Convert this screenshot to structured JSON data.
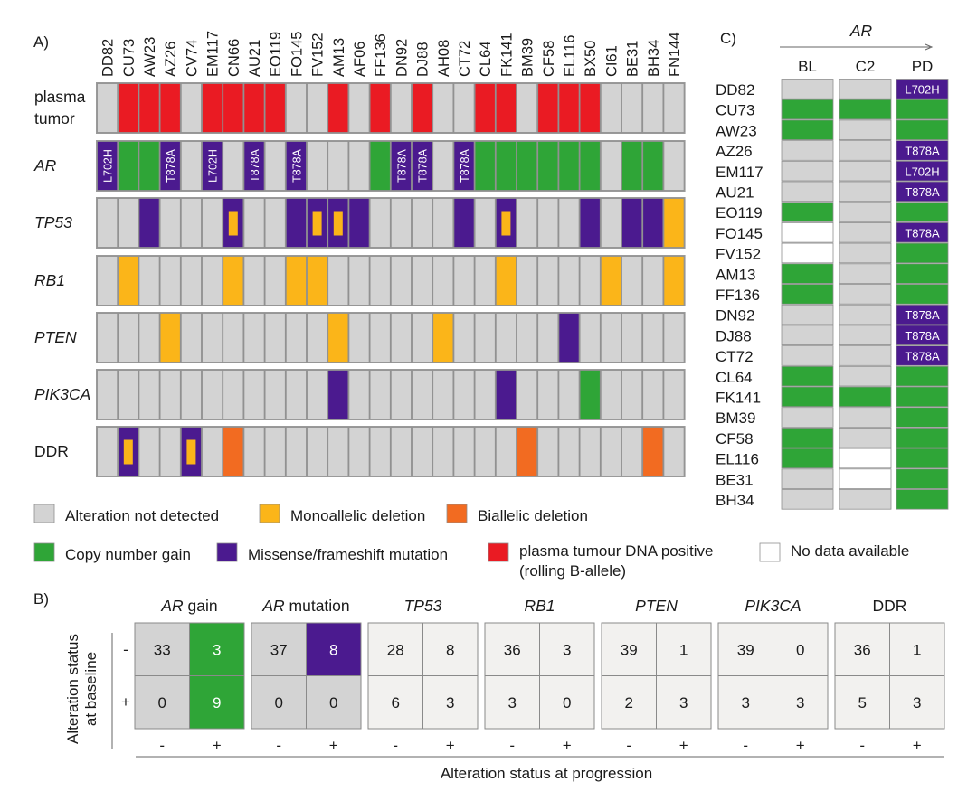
{
  "colors": {
    "none": "#d3d3d3",
    "mono": "#fbb519",
    "bi": "#f26b21",
    "gain": "#2fa537",
    "mut": "#4b1a8f",
    "ctdna": "#ea1b23",
    "nodata": "#ffffff"
  },
  "panelA": {
    "label": "A)",
    "samples": [
      "DD82",
      "CU73",
      "AW23",
      "AZ26",
      "CV74",
      "EM117",
      "CN66",
      "AU21",
      "EO119",
      "FO145",
      "FV152",
      "AM13",
      "AF06",
      "FF136",
      "DN92",
      "DJ88",
      "AH08",
      "CT72",
      "CL64",
      "FK141",
      "BM39",
      "CF58",
      "EL116",
      "BX50",
      "CI61",
      "BE31",
      "BH34",
      "FN144"
    ],
    "rows": [
      {
        "label": "plasma\ntumor",
        "italic": false,
        "cells": [
          "none",
          "ctdna",
          "ctdna",
          "ctdna",
          "none",
          "ctdna",
          "ctdna",
          "ctdna",
          "ctdna",
          "none",
          "none",
          "ctdna",
          "none",
          "ctdna",
          "none",
          "ctdna",
          "none",
          "none",
          "ctdna",
          "ctdna",
          "none",
          "ctdna",
          "ctdna",
          "ctdna",
          "none",
          "none",
          "none",
          "none"
        ]
      },
      {
        "label": "AR",
        "italic": true,
        "cells": [
          "mut",
          "gain",
          "gain",
          "mut",
          "none",
          "mut",
          "none",
          "mut",
          "none",
          "mut",
          "none",
          "none",
          "none",
          "gain",
          "mut",
          "mut",
          "none",
          "mut",
          "gain",
          "gain",
          "gain",
          "gain",
          "gain",
          "gain",
          "none",
          "gain",
          "gain",
          "none"
        ],
        "texts": [
          "L702H",
          "",
          "",
          "T878A",
          "",
          "L702H",
          "",
          "T878A",
          "",
          "T878A",
          "",
          "",
          "",
          "",
          "T878A",
          "T878A",
          "",
          "T878A",
          "",
          "",
          "",
          "",
          "",
          "",
          "",
          "",
          "",
          ""
        ]
      },
      {
        "label": "TP53",
        "italic": true,
        "cells": [
          "none",
          "none",
          "mut",
          "none",
          "none",
          "none",
          "mut",
          "none",
          "none",
          "mut",
          "mut",
          "mut",
          "mut",
          "none",
          "none",
          "none",
          "none",
          "mut",
          "none",
          "mut",
          "none",
          "none",
          "none",
          "mut",
          "none",
          "mut",
          "mut",
          "mono"
        ],
        "inner": [
          0,
          0,
          0,
          0,
          0,
          0,
          1,
          0,
          0,
          0,
          1,
          1,
          0,
          0,
          0,
          0,
          0,
          0,
          0,
          1,
          0,
          0,
          0,
          0,
          0,
          0,
          0,
          0
        ]
      },
      {
        "label": "RB1",
        "italic": true,
        "cells": [
          "none",
          "mono",
          "none",
          "none",
          "none",
          "none",
          "mono",
          "none",
          "none",
          "mono",
          "mono",
          "none",
          "none",
          "none",
          "none",
          "none",
          "none",
          "none",
          "none",
          "mono",
          "none",
          "none",
          "none",
          "none",
          "mono",
          "none",
          "none",
          "mono"
        ]
      },
      {
        "label": "PTEN",
        "italic": true,
        "cells": [
          "none",
          "none",
          "none",
          "mono",
          "none",
          "none",
          "none",
          "none",
          "none",
          "none",
          "none",
          "mono",
          "none",
          "none",
          "none",
          "none",
          "mono",
          "none",
          "none",
          "none",
          "none",
          "none",
          "mut",
          "none",
          "none",
          "none",
          "none",
          "none"
        ]
      },
      {
        "label": "PIK3CA",
        "italic": true,
        "cells": [
          "none",
          "none",
          "none",
          "none",
          "none",
          "none",
          "none",
          "none",
          "none",
          "none",
          "none",
          "mut",
          "none",
          "none",
          "none",
          "none",
          "none",
          "none",
          "none",
          "mut",
          "none",
          "none",
          "none",
          "gain",
          "none",
          "none",
          "none",
          "none"
        ]
      },
      {
        "label": "DDR",
        "italic": false,
        "cells": [
          "none",
          "mut",
          "none",
          "none",
          "mut",
          "none",
          "bi",
          "none",
          "none",
          "none",
          "none",
          "none",
          "none",
          "none",
          "none",
          "none",
          "none",
          "none",
          "none",
          "none",
          "bi",
          "none",
          "none",
          "none",
          "none",
          "none",
          "bi",
          "none"
        ],
        "inner": [
          0,
          1,
          0,
          0,
          1,
          0,
          0,
          0,
          0,
          0,
          0,
          0,
          0,
          0,
          0,
          0,
          0,
          0,
          0,
          0,
          0,
          0,
          0,
          0,
          0,
          0,
          0,
          0
        ]
      }
    ]
  },
  "legend": [
    {
      "key": "none",
      "label": "Alteration not detected"
    },
    {
      "key": "mono",
      "label": "Monoallelic deletion"
    },
    {
      "key": "bi",
      "label": "Biallelic deletion"
    },
    {
      "key": "gain",
      "label": "Copy number gain"
    },
    {
      "key": "mut",
      "label": "Missense/frameshift mutation"
    },
    {
      "key": "ctdna",
      "label": "plasma tumour DNA positive\n(rolling B-allele)"
    },
    {
      "key": "nodata",
      "label": "No data available"
    }
  ],
  "panelB": {
    "label": "B)",
    "ylabel": "Alteration status\nat baseline",
    "xlabel": "Alteration status at progression",
    "row_labels": [
      "-",
      "+"
    ],
    "col_labels": [
      "-",
      "+"
    ],
    "tables": [
      {
        "title": "AR gain",
        "italic_part": "AR",
        "rest": " gain",
        "values": [
          [
            33,
            3
          ],
          [
            0,
            9
          ]
        ],
        "fills": [
          [
            "#d3d3d3",
            "#2fa537"
          ],
          [
            "#d3d3d3",
            "#2fa537"
          ]
        ],
        "fgs": [
          [
            "#1a1a1a",
            "#ffffff"
          ],
          [
            "#1a1a1a",
            "#ffffff"
          ]
        ]
      },
      {
        "title": "AR mutation",
        "italic_part": "AR",
        "rest": " mutation",
        "values": [
          [
            37,
            8
          ],
          [
            0,
            0
          ]
        ],
        "fills": [
          [
            "#d3d3d3",
            "#4b1a8f"
          ],
          [
            "#d3d3d3",
            "#d3d3d3"
          ]
        ],
        "fgs": [
          [
            "#1a1a1a",
            "#ffffff"
          ],
          [
            "#1a1a1a",
            "#1a1a1a"
          ]
        ]
      },
      {
        "title": "TP53",
        "italic_part": "TP53",
        "rest": "",
        "values": [
          [
            28,
            8
          ],
          [
            6,
            3
          ]
        ],
        "fills": [
          [
            "#f2f1ef",
            "#f2f1ef"
          ],
          [
            "#f2f1ef",
            "#f2f1ef"
          ]
        ],
        "fgs": [
          [
            "#1a1a1a",
            "#1a1a1a"
          ],
          [
            "#1a1a1a",
            "#1a1a1a"
          ]
        ]
      },
      {
        "title": "RB1",
        "italic_part": "RB1",
        "rest": "",
        "values": [
          [
            36,
            3
          ],
          [
            3,
            0
          ]
        ],
        "fills": [
          [
            "#f2f1ef",
            "#f2f1ef"
          ],
          [
            "#f2f1ef",
            "#f2f1ef"
          ]
        ],
        "fgs": [
          [
            "#1a1a1a",
            "#1a1a1a"
          ],
          [
            "#1a1a1a",
            "#1a1a1a"
          ]
        ]
      },
      {
        "title": "PTEN",
        "italic_part": "PTEN",
        "rest": "",
        "values": [
          [
            39,
            1
          ],
          [
            2,
            3
          ]
        ],
        "fills": [
          [
            "#f2f1ef",
            "#f2f1ef"
          ],
          [
            "#f2f1ef",
            "#f2f1ef"
          ]
        ],
        "fgs": [
          [
            "#1a1a1a",
            "#1a1a1a"
          ],
          [
            "#1a1a1a",
            "#1a1a1a"
          ]
        ]
      },
      {
        "title": "PIK3CA",
        "italic_part": "PIK3CA",
        "rest": "",
        "values": [
          [
            39,
            0
          ],
          [
            3,
            3
          ]
        ],
        "fills": [
          [
            "#f2f1ef",
            "#f2f1ef"
          ],
          [
            "#f2f1ef",
            "#f2f1ef"
          ]
        ],
        "fgs": [
          [
            "#1a1a1a",
            "#1a1a1a"
          ],
          [
            "#1a1a1a",
            "#1a1a1a"
          ]
        ]
      },
      {
        "title": "DDR",
        "italic_part": "",
        "rest": "DDR",
        "values": [
          [
            36,
            1
          ],
          [
            5,
            3
          ]
        ],
        "fills": [
          [
            "#f2f1ef",
            "#f2f1ef"
          ],
          [
            "#f2f1ef",
            "#f2f1ef"
          ]
        ],
        "fgs": [
          [
            "#1a1a1a",
            "#1a1a1a"
          ],
          [
            "#1a1a1a",
            "#1a1a1a"
          ]
        ]
      }
    ]
  },
  "panelC": {
    "label": "C)",
    "title": "AR",
    "columns": [
      "BL",
      "C2",
      "PD"
    ],
    "samples": [
      "DD82",
      "CU73",
      "AW23",
      "AZ26",
      "EM117",
      "AU21",
      "EO119",
      "FO145",
      "FV152",
      "AM13",
      "FF136",
      "DN92",
      "DJ88",
      "CT72",
      "CL64",
      "FK141",
      "BM39",
      "CF58",
      "EL116",
      "BE31",
      "BH34"
    ],
    "cells": {
      "BL": [
        "none",
        "gain",
        "gain",
        "none",
        "none",
        "none",
        "gain",
        "nodata",
        "nodata",
        "gain",
        "gain",
        "none",
        "none",
        "none",
        "gain",
        "gain",
        "none",
        "gain",
        "gain",
        "none",
        "none"
      ],
      "C2": [
        "none",
        "gain",
        "none",
        "none",
        "none",
        "none",
        "none",
        "none",
        "none",
        "none",
        "none",
        "none",
        "none",
        "none",
        "none",
        "gain",
        "none",
        "none",
        "nodata",
        "nodata",
        "none"
      ],
      "PD": [
        "mut",
        "gain",
        "gain",
        "mut",
        "mut",
        "mut",
        "gain",
        "mut",
        "gain",
        "gain",
        "gain",
        "mut",
        "mut",
        "mut",
        "gain",
        "gain",
        "gain",
        "gain",
        "gain",
        "gain",
        "gain"
      ]
    },
    "pd_texts": [
      "L702H",
      "",
      "",
      "T878A",
      "L702H",
      "T878A",
      "",
      "T878A",
      "",
      "",
      "",
      "T878A",
      "T878A",
      "T878A",
      "",
      "",
      "",
      "",
      "",
      "",
      ""
    ]
  }
}
